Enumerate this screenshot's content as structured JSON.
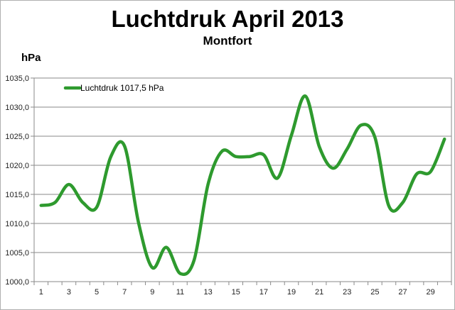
{
  "chart_data": {
    "type": "line",
    "title": "Luchtdruk April 2013",
    "subtitle": "Montfort",
    "ylabel": "hPa",
    "xlabel": "",
    "ylim": [
      1000,
      1035
    ],
    "yticks": [
      "1000,0",
      "1005,0",
      "1010,0",
      "1015,0",
      "1020,0",
      "1025,0",
      "1030,0",
      "1035,0"
    ],
    "ytick_values": [
      1000,
      1005,
      1010,
      1015,
      1020,
      1025,
      1030,
      1035
    ],
    "xticks": [
      "1",
      "3",
      "5",
      "7",
      "9",
      "11",
      "13",
      "15",
      "17",
      "19",
      "21",
      "23",
      "25",
      "27",
      "29"
    ],
    "grid": true,
    "legend_position": "top-left",
    "smooth": true,
    "x": [
      1,
      2,
      3,
      4,
      5,
      6,
      7,
      8,
      9,
      10,
      11,
      12,
      13,
      14,
      15,
      16,
      17,
      18,
      19,
      20,
      21,
      22,
      23,
      24,
      25,
      26,
      27,
      28,
      29,
      30
    ],
    "series": [
      {
        "name": "Luchtdruk 1017,5 hPa",
        "color": "#2e9a2e",
        "values": [
          1013.1,
          1013.6,
          1016.7,
          1013.6,
          1012.8,
          1021.4,
          1023.3,
          1010.2,
          1002.4,
          1005.9,
          1001.4,
          1003.7,
          1016.7,
          1022.4,
          1021.5,
          1021.5,
          1021.8,
          1017.8,
          1025.2,
          1031.9,
          1023.2,
          1019.5,
          1022.8,
          1026.9,
          1024.8,
          1013.0,
          1013.6,
          1018.5,
          1018.9,
          1024.5
        ]
      }
    ]
  }
}
